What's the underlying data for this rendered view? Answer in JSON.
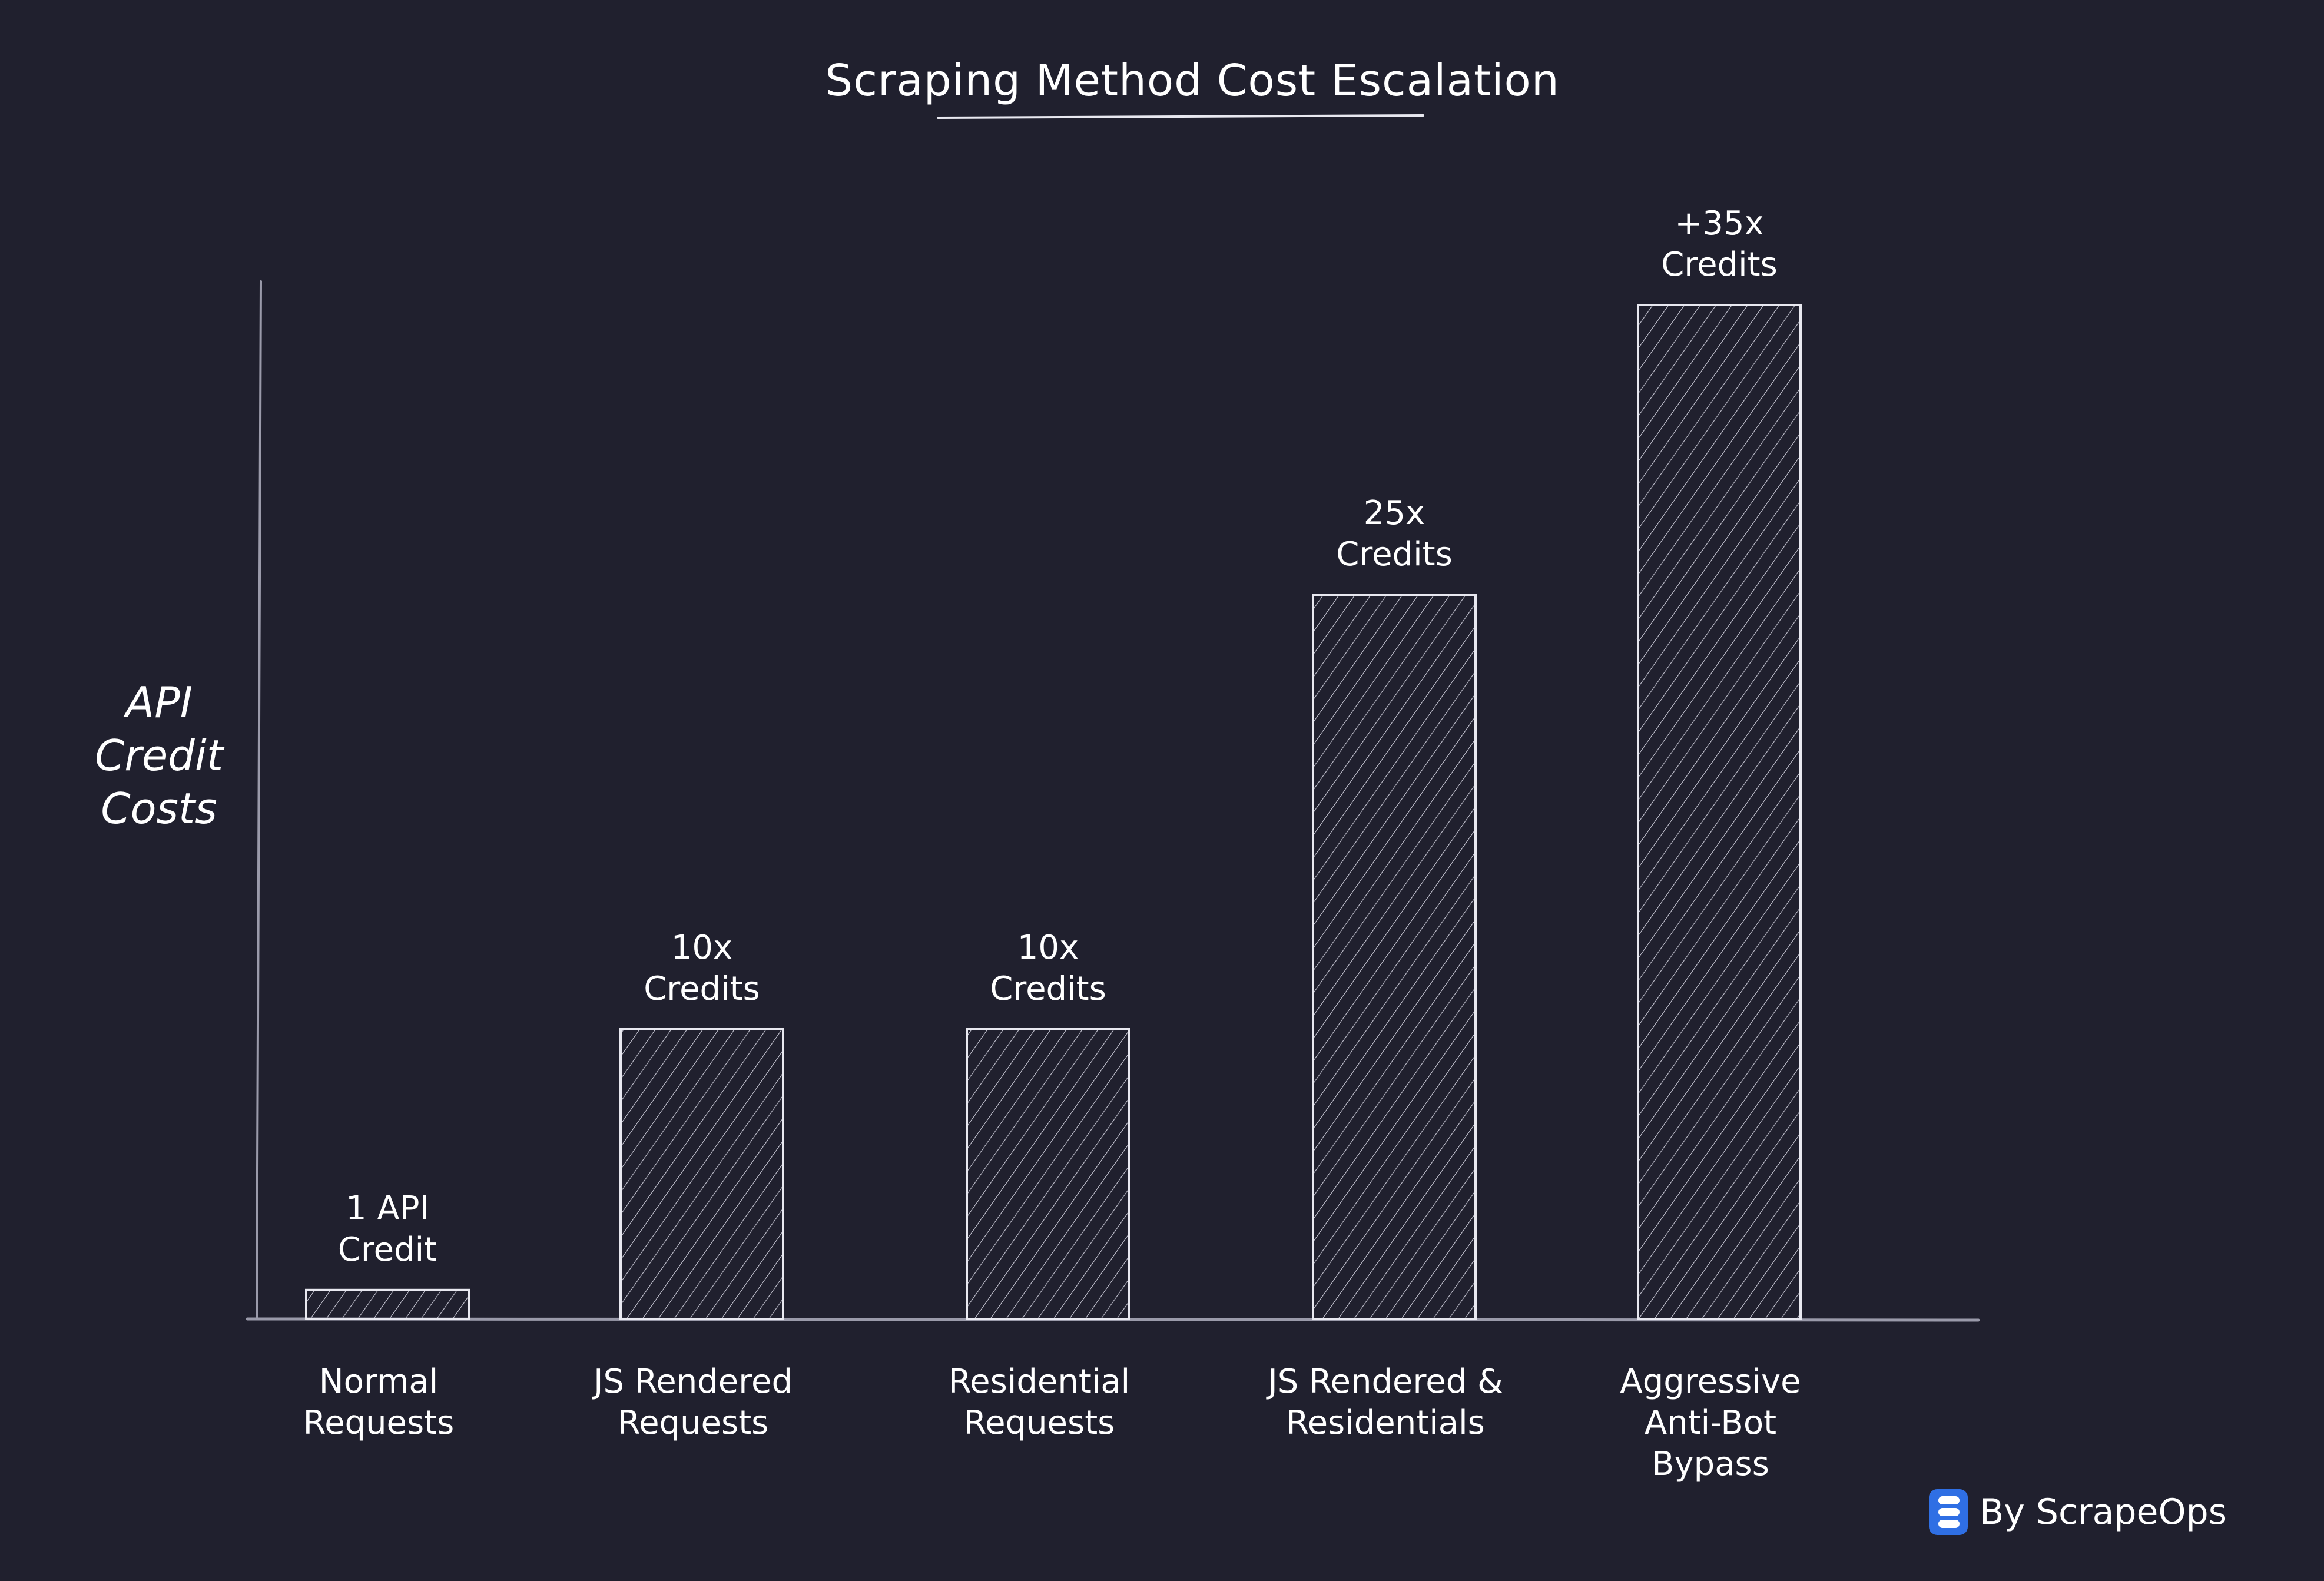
{
  "chart_data": {
    "type": "bar",
    "title": "Scraping Method Cost Escalation",
    "ylabel": "API Credit Costs",
    "ylabel_lines": [
      "API",
      "Credit",
      "Costs"
    ],
    "xlabel": "",
    "ylim": [
      0,
      35
    ],
    "grid": false,
    "categories": [
      "Normal Requests",
      "JS Rendered Requests",
      "Residential Requests",
      "JS Rendered & Residentials",
      "Aggressive Anti-Bot Bypass"
    ],
    "category_lines": [
      [
        "Normal",
        "Requests"
      ],
      [
        "JS Rendered",
        "Requests"
      ],
      [
        "Residential",
        "Requests"
      ],
      [
        "JS Rendered &",
        "Residentials"
      ],
      [
        "Aggressive",
        "Anti-Bot",
        "Bypass"
      ]
    ],
    "values": [
      1,
      10,
      10,
      25,
      35
    ],
    "data_labels": [
      [
        "1 API",
        "Credit"
      ],
      [
        "10x",
        "Credits"
      ],
      [
        "10x",
        "Credits"
      ],
      [
        "25x",
        "Credits"
      ],
      [
        "+35x",
        "Credits"
      ]
    ]
  },
  "footer": {
    "text": "By ScrapeOps",
    "logo_icon": "scrapeops-logo-icon"
  },
  "colors": {
    "background": "#20202e",
    "stroke": "#e8e8f0",
    "hatch": "#c9c9d6",
    "text": "#ffffff",
    "logo": "#2f6fe4"
  }
}
